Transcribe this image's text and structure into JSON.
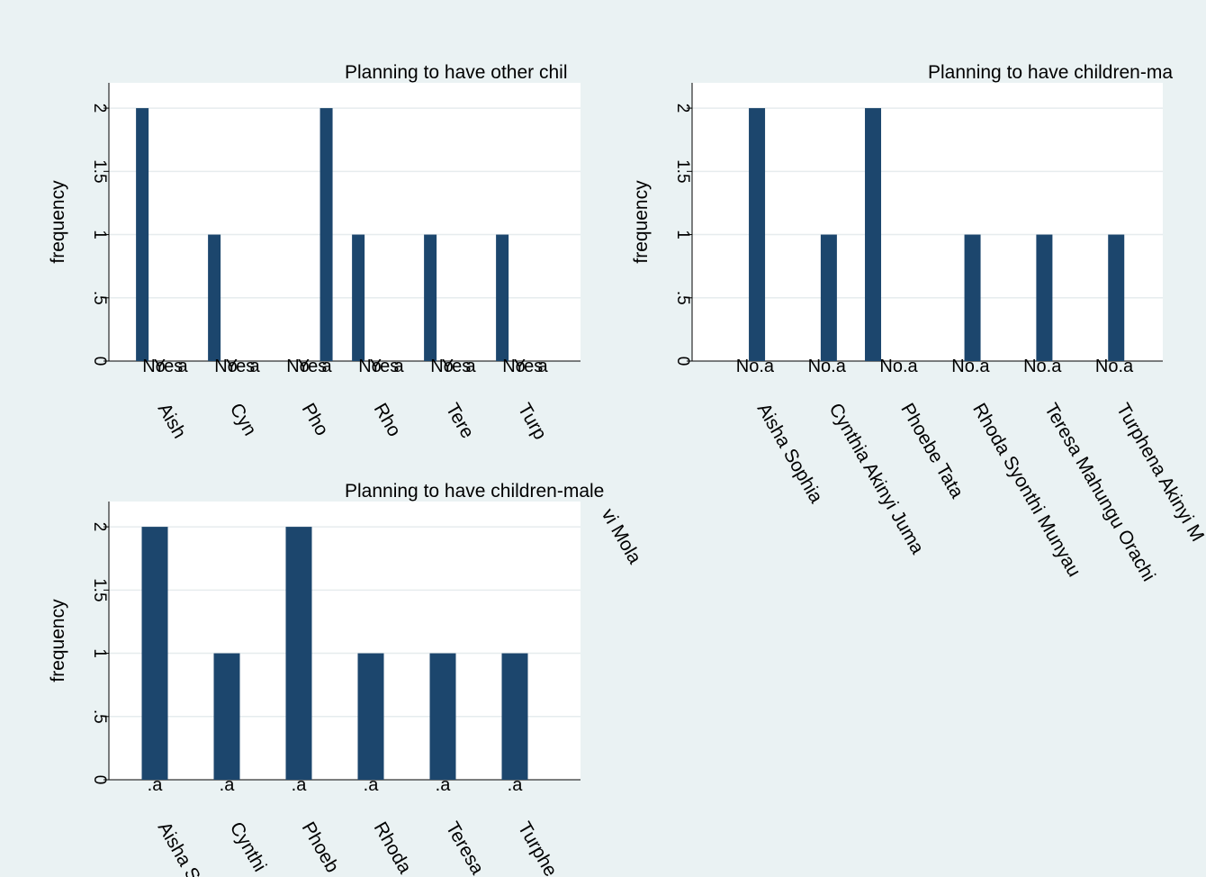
{
  "chart_data": [
    {
      "type": "bar",
      "title": "Planning to have other chil",
      "ylabel": "frequency",
      "ylim": [
        0,
        2.2
      ],
      "yticks": [
        {
          "v": 0,
          "label": "0"
        },
        {
          "v": 0.5,
          "label": ".5"
        },
        {
          "v": 1,
          "label": "1"
        },
        {
          "v": 1.5,
          "label": "1.5"
        },
        {
          "v": 2,
          "label": "2"
        }
      ],
      "grid": true,
      "groups": [
        "Aish",
        "Cyn",
        "Pho",
        "Rho",
        "Tere",
        "Turp"
      ],
      "subcategories": [
        "No",
        "Yes",
        "a"
      ],
      "subcategory_labels": [
        [
          "No",
          "Yes",
          "a"
        ],
        [
          "No",
          "Yes",
          "a"
        ],
        [
          "No",
          "Yes",
          "a"
        ],
        [
          "No",
          "Yes",
          "a"
        ],
        [
          "No",
          "Yes",
          "a"
        ],
        [
          "No",
          "Yes",
          "a"
        ]
      ],
      "values": [
        [
          2,
          0,
          0
        ],
        [
          1,
          0,
          0
        ],
        [
          0,
          0,
          2
        ],
        [
          1,
          0,
          0
        ],
        [
          1,
          0,
          0
        ],
        [
          1,
          0,
          0
        ]
      ]
    },
    {
      "type": "bar",
      "title": "Planning to have children-ma",
      "ylabel": "frequency",
      "ylim": [
        0,
        2.2
      ],
      "yticks": [
        {
          "v": 0,
          "label": "0"
        },
        {
          "v": 0.5,
          "label": ".5"
        },
        {
          "v": 1,
          "label": "1"
        },
        {
          "v": 1.5,
          "label": "1.5"
        },
        {
          "v": 2,
          "label": "2"
        }
      ],
      "grid": true,
      "groups": [
        "Aisha Sophia",
        "Cynthia Akinyi Juma",
        "Phoebe Tata",
        "Rhoda Syonthi Munyau",
        "Teresa Mahungu Orachi",
        "Turphena Akinyi M"
      ],
      "subcategories": [
        "No",
        "a"
      ],
      "subcategory_labels": [
        [
          "No",
          ".a"
        ],
        [
          "No",
          ".a"
        ],
        [
          "No",
          ".a"
        ],
        [
          "No",
          ".a"
        ],
        [
          "No",
          ".a"
        ],
        [
          "No",
          ".a"
        ]
      ],
      "values": [
        [
          0,
          2
        ],
        [
          0,
          1
        ],
        [
          2,
          0
        ],
        [
          0,
          1
        ],
        [
          0,
          1
        ],
        [
          0,
          1
        ]
      ]
    },
    {
      "type": "bar",
      "title": "Planning to have children-male",
      "ylabel": "frequency",
      "ylim": [
        0,
        2.2
      ],
      "yticks": [
        {
          "v": 0,
          "label": "0"
        },
        {
          "v": 0.5,
          "label": ".5"
        },
        {
          "v": 1,
          "label": "1"
        },
        {
          "v": 1.5,
          "label": "1.5"
        },
        {
          "v": 2,
          "label": "2"
        }
      ],
      "grid": true,
      "groups": [
        "Aisha S",
        "Cynthi",
        "Phoeb",
        "Rhoda",
        "Teresa",
        "Turphe"
      ],
      "subcategories": [
        ".a"
      ],
      "subcategory_labels": [
        [
          ".a"
        ],
        [
          ".a"
        ],
        [
          ".a"
        ],
        [
          ".a"
        ],
        [
          ".a"
        ],
        [
          ".a"
        ]
      ],
      "values": [
        [
          2
        ],
        [
          1
        ],
        [
          2
        ],
        [
          1
        ],
        [
          1
        ],
        [
          1
        ]
      ],
      "annotation": "vi Mola"
    }
  ],
  "colors": {
    "bar": "#1c466d",
    "plot_bg": "#ffffff",
    "page_bg": "#eaf2f3",
    "grid": "#e6ecee"
  }
}
